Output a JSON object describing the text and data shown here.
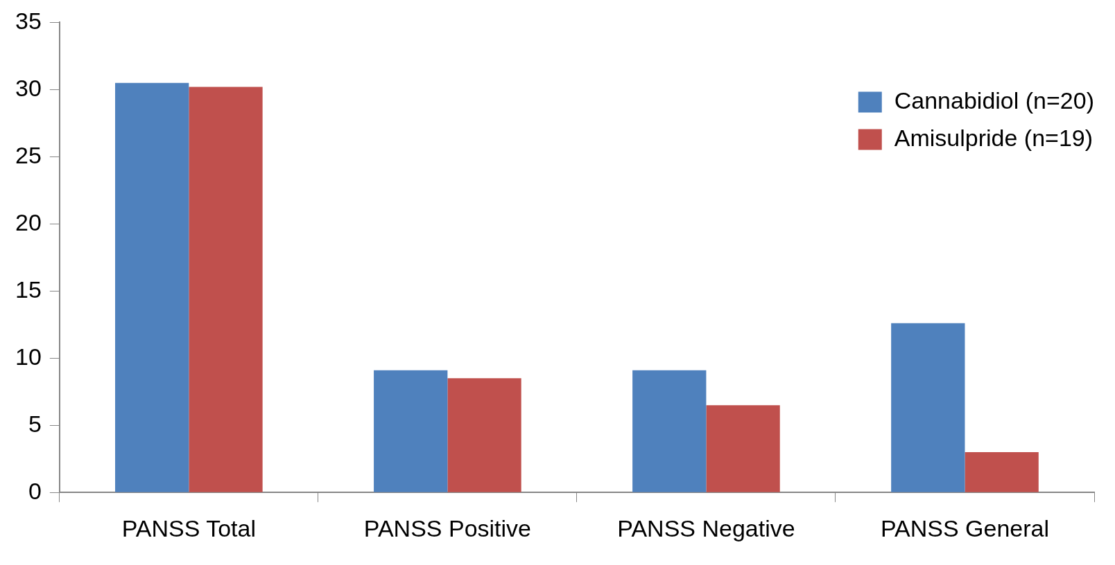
{
  "chart_data": {
    "type": "bar",
    "categories": [
      "PANSS Total",
      "PANSS Positive",
      "PANSS Negative",
      "PANSS General"
    ],
    "series": [
      {
        "name": "Cannabidiol (n=20)",
        "color": "#4f81bd",
        "values": [
          30.5,
          9.1,
          9.1,
          12.6
        ]
      },
      {
        "name": "Amisulpride (n=19)",
        "color": "#c0504d",
        "values": [
          30.2,
          8.5,
          6.5,
          3.0
        ]
      }
    ],
    "ylim": [
      0,
      35
    ],
    "yticks": [
      0,
      5,
      10,
      15,
      20,
      25,
      30,
      35
    ],
    "grid": false,
    "legend": "top right"
  }
}
